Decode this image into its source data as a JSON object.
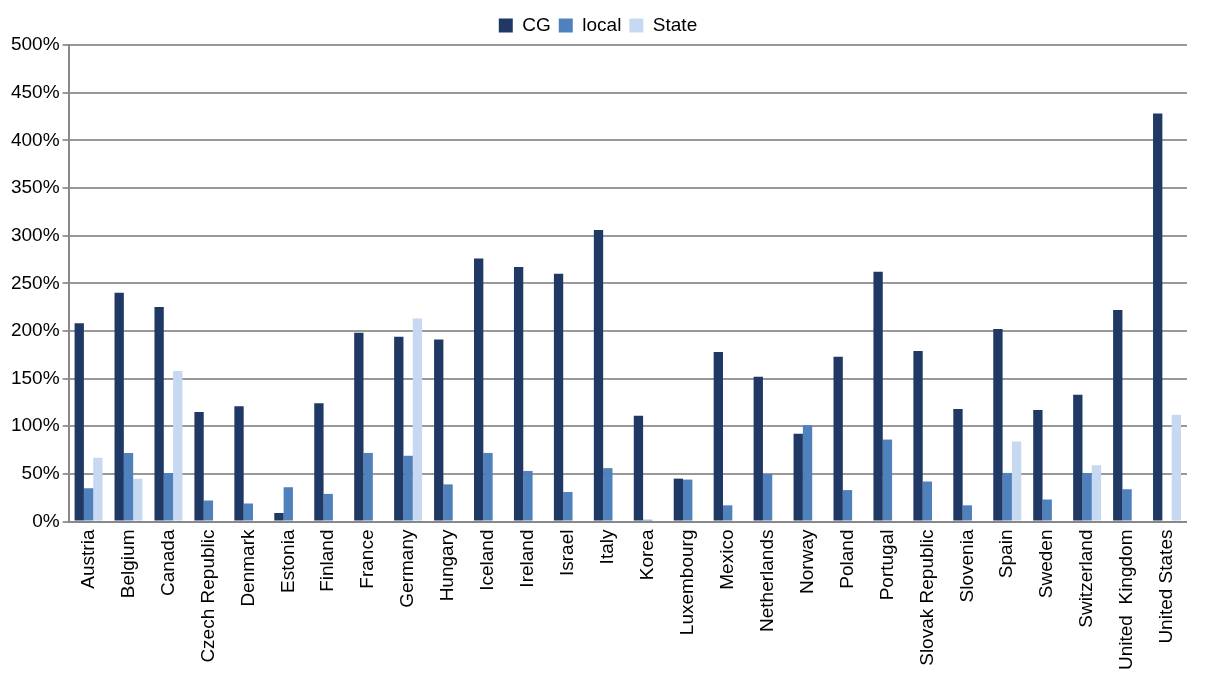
{
  "chart_data": {
    "type": "bar",
    "categories": [
      "Austria",
      "Belgium",
      "Canada",
      "Czech Republic",
      "Denmark",
      "Estonia",
      "Finland",
      "France",
      "Germany",
      "Hungary",
      "Iceland",
      "Ireland",
      "Israel",
      "Italy",
      "Korea",
      "Luxembourg",
      "Mexico",
      "Netherlands",
      "Norway",
      "Poland",
      "Portugal",
      "Slovak Republic",
      "Slovenia",
      "Spain",
      "Sweden",
      "Switzerland",
      "United  Kingdom",
      "United States"
    ],
    "series": [
      {
        "name": "CG",
        "color": "#1f3864",
        "values": [
          208,
          240,
          225,
          115,
          121,
          9,
          124,
          198,
          194,
          191,
          276,
          267,
          260,
          306,
          111,
          45,
          178,
          152,
          92,
          173,
          262,
          179,
          118,
          202,
          117,
          133,
          222,
          428
        ]
      },
      {
        "name": "local",
        "color": "#4f81bd",
        "values": [
          35,
          72,
          51,
          22,
          19,
          36,
          29,
          72,
          69,
          39,
          72,
          53,
          31,
          56,
          2,
          44,
          17,
          50,
          101,
          33,
          86,
          42,
          17,
          51,
          23,
          51,
          34,
          null
        ]
      },
      {
        "name": "State",
        "color": "#c6d9f1",
        "values": [
          67,
          45,
          158,
          null,
          null,
          null,
          null,
          null,
          213,
          null,
          null,
          null,
          null,
          null,
          null,
          null,
          null,
          null,
          null,
          null,
          null,
          null,
          null,
          84,
          null,
          59,
          null,
          112
        ]
      }
    ],
    "ylim": [
      0,
      500
    ],
    "yticks": [
      {
        "value": 0,
        "label": "0%"
      },
      {
        "value": 50,
        "label": "50%"
      },
      {
        "value": 100,
        "label": "100%"
      },
      {
        "value": 150,
        "label": "150%"
      },
      {
        "value": 200,
        "label": "200%"
      },
      {
        "value": 250,
        "label": "250%"
      },
      {
        "value": 300,
        "label": "300%"
      },
      {
        "value": 350,
        "label": "350%"
      },
      {
        "value": 400,
        "label": "400%"
      },
      {
        "value": 450,
        "label": "450%"
      },
      {
        "value": 500,
        "label": "500%"
      }
    ],
    "grid": "y",
    "legend": "top"
  }
}
